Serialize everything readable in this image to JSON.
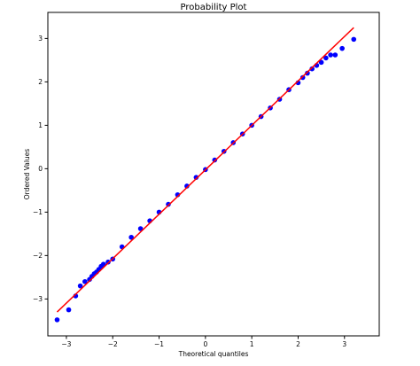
{
  "chart_data": {
    "type": "scatter",
    "title": "Probability Plot",
    "xlabel": "Theoretical quantiles",
    "ylabel": "Ordered Values",
    "xlim": [
      -3.4,
      3.75
    ],
    "ylim": [
      -3.85,
      3.6
    ],
    "xticks": [
      -3,
      -2,
      -1,
      0,
      1,
      2,
      3
    ],
    "yticks": [
      -3,
      -2,
      -1,
      0,
      1,
      2,
      3
    ],
    "xtick_labels": [
      "−3",
      "−2",
      "−1",
      "0",
      "1",
      "2",
      "3"
    ],
    "ytick_labels": [
      "−3",
      "−2",
      "−1",
      "0",
      "1",
      "2",
      "3"
    ],
    "grid": false,
    "legend": false,
    "colors": {
      "points": "#0000ff",
      "fit_line": "#ff0000",
      "axes": "#000000",
      "background": "#ffffff"
    },
    "series": [
      {
        "type": "scatter",
        "x": [
          -3.2,
          -2.95,
          -2.8,
          -2.7,
          -2.6,
          -2.5,
          -2.45,
          -2.4,
          -2.35,
          -2.3,
          -2.25,
          -2.2,
          -2.1,
          -2.0,
          -1.8,
          -1.6,
          -1.4,
          -1.2,
          -1.0,
          -0.8,
          -0.6,
          -0.4,
          -0.2,
          0.0,
          0.2,
          0.4,
          0.6,
          0.8,
          1.0,
          1.2,
          1.4,
          1.6,
          1.8,
          2.0,
          2.1,
          2.2,
          2.3,
          2.4,
          2.5,
          2.6,
          2.7,
          2.8,
          2.95,
          3.2
        ],
        "y": [
          -3.48,
          -3.25,
          -2.93,
          -2.7,
          -2.6,
          -2.55,
          -2.48,
          -2.42,
          -2.38,
          -2.32,
          -2.25,
          -2.2,
          -2.15,
          -2.08,
          -1.8,
          -1.58,
          -1.38,
          -1.2,
          -1.0,
          -0.82,
          -0.6,
          -0.4,
          -0.2,
          -0.02,
          0.2,
          0.4,
          0.6,
          0.8,
          1.0,
          1.2,
          1.4,
          1.6,
          1.82,
          1.98,
          2.1,
          2.2,
          2.3,
          2.38,
          2.45,
          2.55,
          2.62,
          2.62,
          2.77,
          2.98
        ]
      },
      {
        "type": "line",
        "x": [
          -3.2,
          3.2
        ],
        "y": [
          -3.3,
          3.25
        ]
      }
    ]
  }
}
